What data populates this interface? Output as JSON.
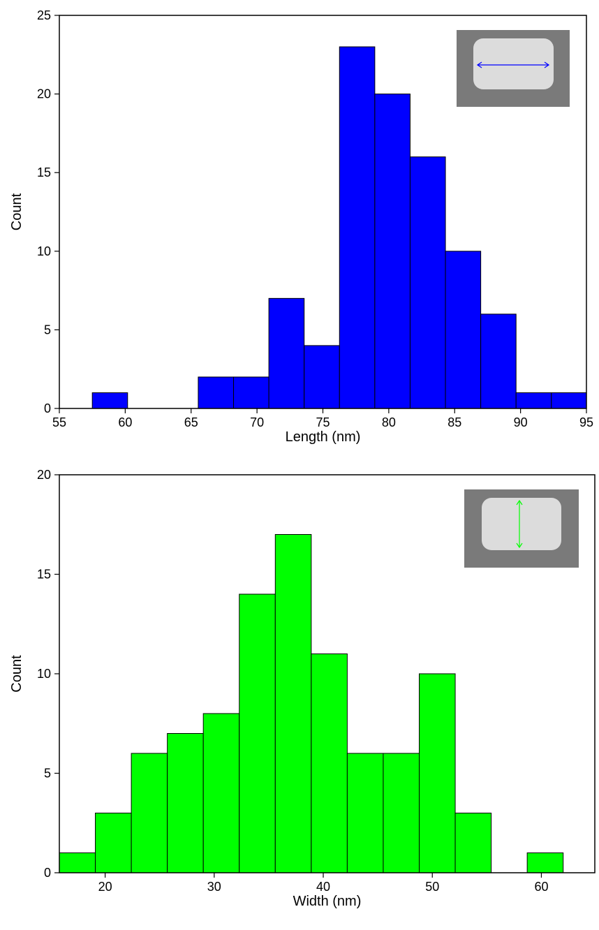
{
  "chart_data": [
    {
      "type": "histogram",
      "x_label": "Length (nm)",
      "y_label": "Count",
      "bins": [
        57.5,
        60.18,
        62.86,
        65.54,
        68.22,
        70.9,
        73.58,
        76.26,
        78.94,
        81.62,
        84.3,
        86.98,
        89.66,
        92.34,
        95
      ],
      "values": [
        1,
        0,
        0,
        2,
        2,
        7,
        4,
        23,
        20,
        16,
        10,
        6,
        1,
        1
      ],
      "color": "#0000ff",
      "xlim": [
        55,
        95
      ],
      "xticks": [
        55,
        60,
        65,
        70,
        75,
        80,
        85,
        90,
        95
      ],
      "ylim": [
        0,
        25
      ],
      "yticks": [
        0,
        5,
        10,
        15,
        20,
        25
      ]
    },
    {
      "type": "histogram",
      "x_label": "Width (nm)",
      "y_label": "Count",
      "bins": [
        15.8,
        19.1,
        22.4,
        25.7,
        29.0,
        32.3,
        35.6,
        38.9,
        42.2,
        45.5,
        48.8,
        52.1,
        55.4,
        58.7,
        62.0
      ],
      "values": [
        1,
        3,
        6,
        7,
        8,
        14,
        17,
        11,
        6,
        6,
        10,
        3,
        0,
        1
      ],
      "color": "#00ff00",
      "xlim": [
        15.8,
        64.9
      ],
      "xticks": [
        20,
        30,
        40,
        50,
        60
      ],
      "ylim": [
        0,
        20
      ],
      "yticks": [
        0,
        5,
        10,
        15,
        20
      ]
    }
  ]
}
